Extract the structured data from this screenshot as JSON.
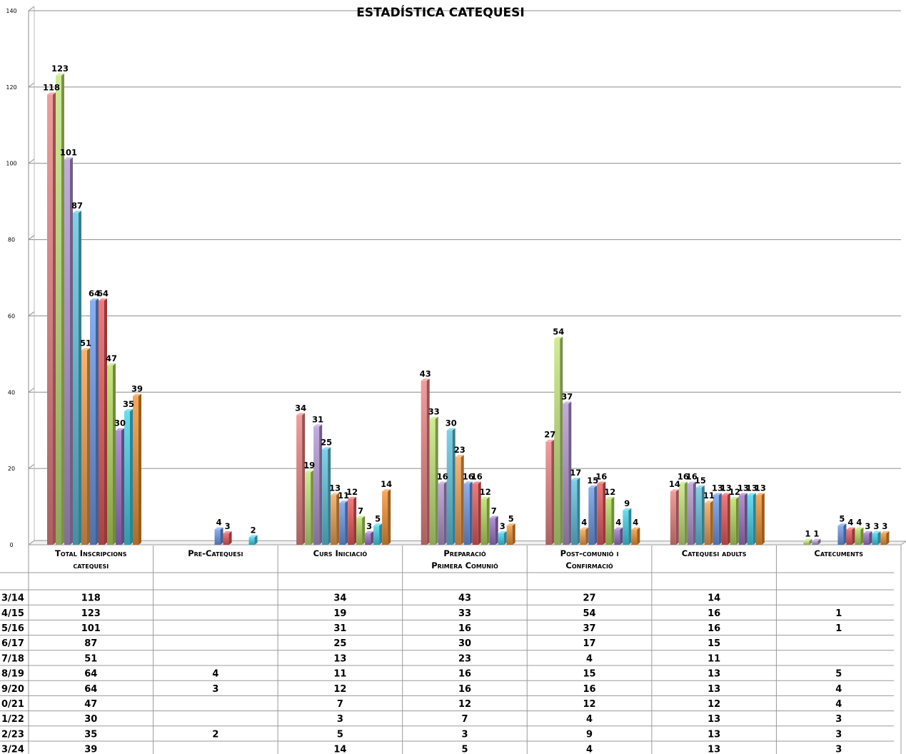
{
  "chart_data": {
    "type": "bar",
    "title": "ESTADÍSTICA CATEQUESI",
    "ylim": [
      0,
      140
    ],
    "y_ticks": [
      "0",
      "20",
      "40",
      "60",
      "80",
      "100",
      "120",
      "140"
    ],
    "grid": true,
    "categories": [
      [
        "Total Inscripcions",
        "catequesi"
      ],
      [
        "Pre-Catequesi"
      ],
      [
        "Curs Iniciació"
      ],
      [
        "Preparació",
        "Primera Comunió"
      ],
      [
        "Post-comunió i",
        "Confirmació"
      ],
      [
        "Catequesi adults"
      ],
      [
        "Catecuments"
      ]
    ],
    "series": [
      {
        "name": "3/14",
        "color": "#f08585",
        "values": [
          118,
          null,
          34,
          43,
          27,
          14,
          null
        ]
      },
      {
        "name": "4/15",
        "color": "#c4e87a",
        "values": [
          123,
          null,
          19,
          33,
          54,
          16,
          1
        ]
      },
      {
        "name": "5/16",
        "color": "#b59ad6",
        "values": [
          101,
          null,
          31,
          16,
          37,
          16,
          1
        ]
      },
      {
        "name": "6/17",
        "color": "#5fc8e3",
        "values": [
          87,
          null,
          25,
          30,
          17,
          15,
          null
        ]
      },
      {
        "name": "7/18",
        "color": "#f7a350",
        "values": [
          51,
          null,
          13,
          23,
          4,
          11,
          null
        ]
      },
      {
        "name": "8/19",
        "color": "#6f9ded",
        "values": [
          64,
          4,
          11,
          16,
          15,
          13,
          5
        ]
      },
      {
        "name": "9/20",
        "color": "#ee5c5c",
        "values": [
          64,
          3,
          12,
          16,
          16,
          13,
          4
        ]
      },
      {
        "name": "0/21",
        "color": "#b6e060",
        "values": [
          47,
          null,
          7,
          12,
          12,
          12,
          4
        ]
      },
      {
        "name": "1/22",
        "color": "#9f79cc",
        "values": [
          30,
          null,
          3,
          7,
          4,
          13,
          3
        ]
      },
      {
        "name": "2/23",
        "color": "#45d6ee",
        "values": [
          35,
          2,
          5,
          3,
          9,
          13,
          3
        ]
      },
      {
        "name": "3/24",
        "color": "#f79433",
        "values": [
          39,
          null,
          14,
          5,
          4,
          13,
          3
        ]
      }
    ]
  }
}
